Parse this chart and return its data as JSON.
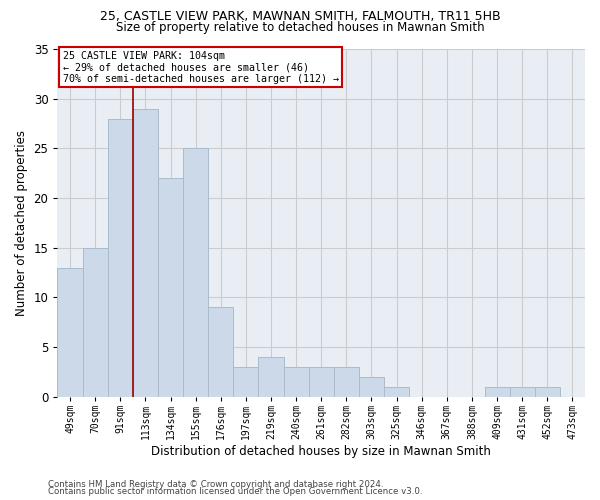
{
  "title": "25, CASTLE VIEW PARK, MAWNAN SMITH, FALMOUTH, TR11 5HB",
  "subtitle": "Size of property relative to detached houses in Mawnan Smith",
  "xlabel": "Distribution of detached houses by size in Mawnan Smith",
  "ylabel": "Number of detached properties",
  "bar_color": "#ccd9e8",
  "bar_edgecolor": "#aabccc",
  "grid_color": "#cccccc",
  "bg_color": "#e8eef4",
  "annotation_box_color": "#cc0000",
  "vline_color": "#990000",
  "categories": [
    "49sqm",
    "70sqm",
    "91sqm",
    "113sqm",
    "134sqm",
    "155sqm",
    "176sqm",
    "197sqm",
    "219sqm",
    "240sqm",
    "261sqm",
    "282sqm",
    "303sqm",
    "325sqm",
    "346sqm",
    "367sqm",
    "388sqm",
    "409sqm",
    "431sqm",
    "452sqm",
    "473sqm"
  ],
  "values": [
    13,
    15,
    28,
    29,
    22,
    25,
    9,
    3,
    4,
    3,
    3,
    3,
    2,
    1,
    0,
    0,
    0,
    1,
    1,
    1,
    0
  ],
  "vline_position": 2.5,
  "annotation_line1": "25 CASTLE VIEW PARK: 104sqm",
  "annotation_line2": "← 29% of detached houses are smaller (46)",
  "annotation_line3": "70% of semi-detached houses are larger (112) →",
  "footer1": "Contains HM Land Registry data © Crown copyright and database right 2024.",
  "footer2": "Contains public sector information licensed under the Open Government Licence v3.0.",
  "ylim": [
    0,
    35
  ],
  "yticks": [
    0,
    5,
    10,
    15,
    20,
    25,
    30,
    35
  ],
  "title_fontsize": 9,
  "subtitle_fontsize": 8.5
}
